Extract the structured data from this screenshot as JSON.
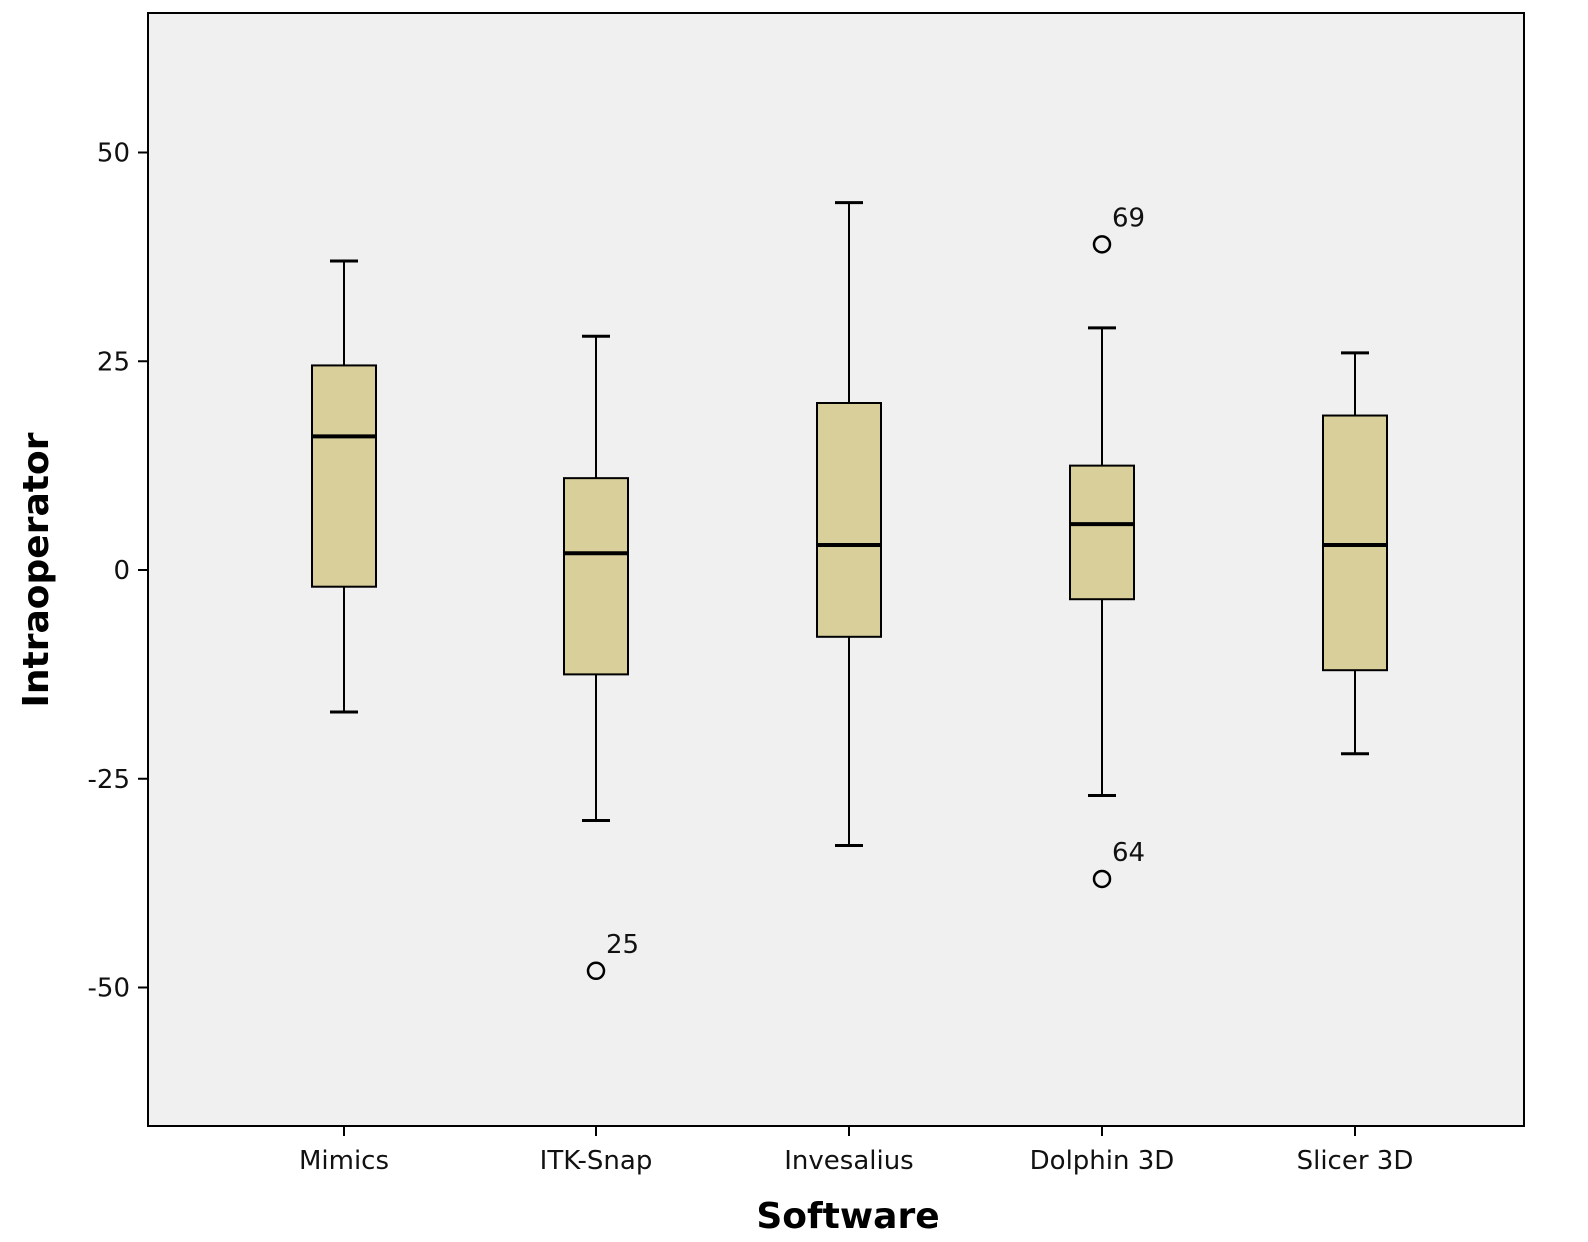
{
  "chart_data": {
    "type": "box",
    "xlabel": "Software",
    "ylabel": "Intraoperator",
    "ylim": [
      -67,
      67
    ],
    "yticks": [
      -50,
      -25,
      0,
      25,
      50
    ],
    "grid": false,
    "categories": [
      "Mimics",
      "ITK-Snap",
      "Invesalius",
      "Dolphin 3D",
      "Slicer 3D"
    ],
    "boxes": [
      {
        "category": "Mimics",
        "min": -17,
        "q1": -2,
        "median": 16,
        "q3": 24.5,
        "max": 37,
        "outliers": []
      },
      {
        "category": "ITK-Snap",
        "min": -30,
        "q1": -12.5,
        "median": 2,
        "q3": 11,
        "max": 28,
        "outliers": [
          {
            "value": -48,
            "label": "25"
          }
        ]
      },
      {
        "category": "Invesalius",
        "min": -33,
        "q1": -8,
        "median": 3,
        "q3": 20,
        "max": 44,
        "outliers": []
      },
      {
        "category": "Dolphin 3D",
        "min": -27,
        "q1": -3.5,
        "median": 5.5,
        "q3": 12.5,
        "max": 29,
        "outliers": [
          {
            "value": 39,
            "label": "69"
          },
          {
            "value": -37,
            "label": "64"
          }
        ]
      },
      {
        "category": "Slicer 3D",
        "min": -22,
        "q1": -12,
        "median": 3,
        "q3": 18.5,
        "max": 26,
        "outliers": []
      }
    ],
    "colors": {
      "box_fill": "#d8cf9b",
      "plot_background": "#f0f0f0",
      "stroke": "#000000"
    }
  }
}
